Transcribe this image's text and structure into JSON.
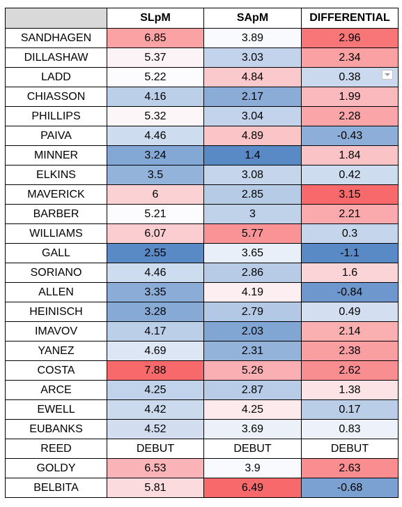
{
  "headers": {
    "name": "",
    "slpm": "SLpM",
    "sapm": "SApM",
    "differential": "DIFFERENTIAL"
  },
  "scale": {
    "low_color": "#5a8ac6",
    "mid_color": "#fcfcff",
    "high_color": "#f8696b",
    "note": "3-color scale per column: lowest blue, midpoint white, highest red"
  },
  "rows": [
    {
      "name": "SANDHAGEN",
      "slpm": "6.85",
      "sapm": "3.89",
      "differential": "2.96"
    },
    {
      "name": "DILLASHAW",
      "slpm": "5.37",
      "sapm": "3.03",
      "differential": "2.34"
    },
    {
      "name": "LADD",
      "slpm": "5.22",
      "sapm": "4.84",
      "differential": "0.38"
    },
    {
      "name": "CHIASSON",
      "slpm": "4.16",
      "sapm": "2.17",
      "differential": "1.99"
    },
    {
      "name": "PHILLIPS",
      "slpm": "5.32",
      "sapm": "3.04",
      "differential": "2.28"
    },
    {
      "name": "PAIVA",
      "slpm": "4.46",
      "sapm": "4.89",
      "differential": "-0.43"
    },
    {
      "name": "MINNER",
      "slpm": "3.24",
      "sapm": "1.4",
      "differential": "1.84"
    },
    {
      "name": "ELKINS",
      "slpm": "3.5",
      "sapm": "3.08",
      "differential": "0.42"
    },
    {
      "name": "MAVERICK",
      "slpm": "6",
      "sapm": "2.85",
      "differential": "3.15"
    },
    {
      "name": "BARBER",
      "slpm": "5.21",
      "sapm": "3",
      "differential": "2.21"
    },
    {
      "name": "WILLIAMS",
      "slpm": "6.07",
      "sapm": "5.77",
      "differential": "0.3"
    },
    {
      "name": "GALL",
      "slpm": "2.55",
      "sapm": "3.65",
      "differential": "-1.1"
    },
    {
      "name": "SORIANO",
      "slpm": "4.46",
      "sapm": "2.86",
      "differential": "1.6"
    },
    {
      "name": "ALLEN",
      "slpm": "3.35",
      "sapm": "4.19",
      "differential": "-0.84"
    },
    {
      "name": "HEINISCH",
      "slpm": "3.28",
      "sapm": "2.79",
      "differential": "0.49"
    },
    {
      "name": "IMAVOV",
      "slpm": "4.17",
      "sapm": "2.03",
      "differential": "2.14"
    },
    {
      "name": "YANEZ",
      "slpm": "4.69",
      "sapm": "2.31",
      "differential": "2.38"
    },
    {
      "name": "COSTA",
      "slpm": "7.88",
      "sapm": "5.26",
      "differential": "2.62"
    },
    {
      "name": "ARCE",
      "slpm": "4.25",
      "sapm": "2.87",
      "differential": "1.38"
    },
    {
      "name": "EWELL",
      "slpm": "4.42",
      "sapm": "4.25",
      "differential": "0.17"
    },
    {
      "name": "EUBANKS",
      "slpm": "4.52",
      "sapm": "3.69",
      "differential": "0.83"
    },
    {
      "name": "REED",
      "slpm": "DEBUT",
      "sapm": "DEBUT",
      "differential": "DEBUT"
    },
    {
      "name": "GOLDY",
      "slpm": "6.53",
      "sapm": "3.9",
      "differential": "2.63"
    },
    {
      "name": "BELBITA",
      "slpm": "5.81",
      "sapm": "6.49",
      "differential": "-0.68"
    }
  ]
}
